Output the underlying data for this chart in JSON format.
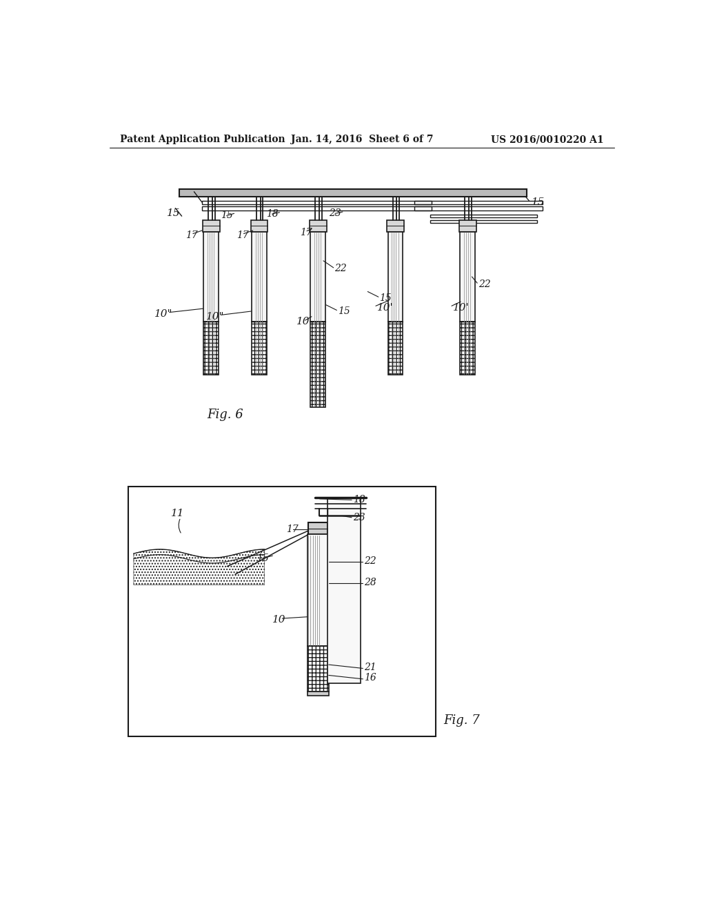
{
  "background_color": "#ffffff",
  "header_left": "Patent Application Publication",
  "header_center": "Jan. 14, 2016  Sheet 6 of 7",
  "header_right": "US 2016/0010220 A1",
  "fig6_caption": "Fig. 6",
  "fig7_caption": "Fig. 7",
  "lc": "#1a1a1a"
}
